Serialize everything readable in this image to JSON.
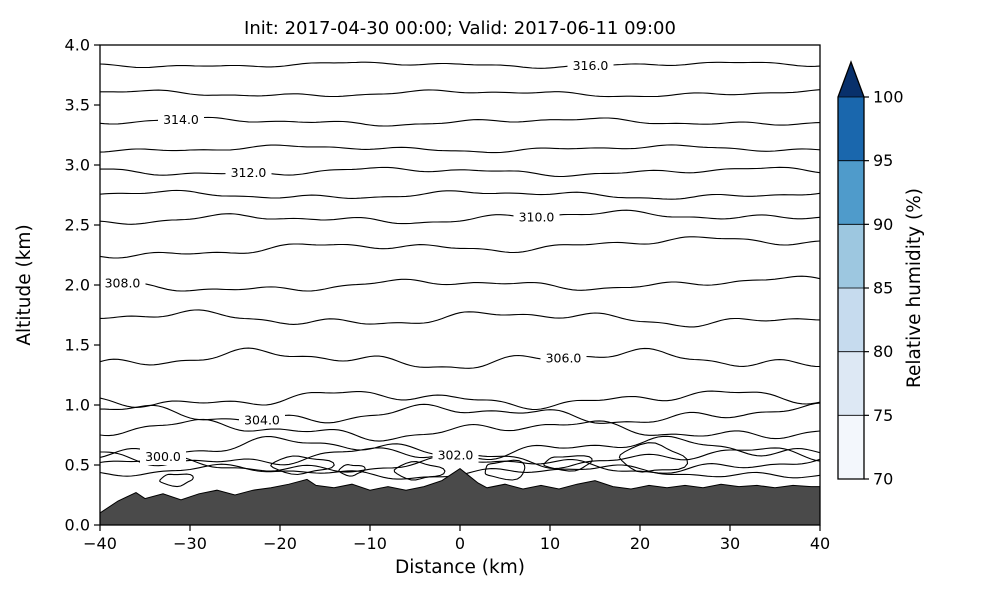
{
  "chart_data": {
    "type": "contour",
    "title": "Init: 2017-04-30 00:00; Valid: 2017-06-11 09:00",
    "xlabel": "Distance (km)",
    "ylabel": "Altitude (km)",
    "xlim": [
      -40,
      40
    ],
    "ylim": [
      0,
      4
    ],
    "xticks": [
      -40,
      -30,
      -20,
      -10,
      0,
      10,
      20,
      30,
      40
    ],
    "xtick_labels": [
      "−40",
      "−30",
      "−20",
      "−10",
      "0",
      "10",
      "20",
      "30",
      "40"
    ],
    "yticks": [
      0,
      0.5,
      1,
      1.5,
      2,
      2.5,
      3,
      3.5,
      4
    ],
    "ytick_labels": [
      "0.0",
      "0.5",
      "1.0",
      "1.5",
      "2.0",
      "2.5",
      "3.0",
      "3.5",
      "4.0"
    ],
    "contour_interval": 1.0,
    "contours": [
      {
        "level": 299,
        "alt": 0.44,
        "amp": 0.035
      },
      {
        "level": 300,
        "alt": 0.5,
        "amp": 0.045,
        "label": "300.0",
        "label_x": -33
      },
      {
        "level": 301,
        "alt": 0.565,
        "amp": 0.05
      },
      {
        "level": 302,
        "alt": 0.64,
        "amp": 0.055,
        "label": "302.0",
        "label_x": -0.5
      },
      {
        "level": 303,
        "alt": 0.79,
        "amp": 0.05
      },
      {
        "level": 304,
        "alt": 0.92,
        "amp": 0.05,
        "label": "304.0",
        "label_x": -22
      },
      {
        "level": 305,
        "alt": 1.05,
        "amp": 0.045
      },
      {
        "level": 306,
        "alt": 1.38,
        "amp": 0.05,
        "label": "306.0",
        "label_x": 11.5
      },
      {
        "level": 307,
        "alt": 1.72,
        "amp": 0.04
      },
      {
        "level": 308,
        "alt": 2.0,
        "amp": 0.03,
        "label": "308.0",
        "label_x": -37.5,
        "tilt": 0.04
      },
      {
        "level": 309,
        "alt": 2.32,
        "amp": 0.03,
        "tilt": 0.1
      },
      {
        "level": 310,
        "alt": 2.56,
        "amp": 0.028,
        "label": "310.0",
        "label_x": 8.5,
        "tilt": 0.06
      },
      {
        "level": 311,
        "alt": 2.75,
        "amp": 0.022
      },
      {
        "level": 312,
        "alt": 2.945,
        "amp": 0.022,
        "label": "312.0",
        "label_x": -23.5
      },
      {
        "level": 313,
        "alt": 3.135,
        "amp": 0.018
      },
      {
        "level": 314,
        "alt": 3.36,
        "amp": 0.02,
        "label": "314.0",
        "label_x": -31
      },
      {
        "level": 315,
        "alt": 3.595,
        "amp": 0.018
      },
      {
        "level": 316,
        "alt": 3.835,
        "amp": 0.015,
        "label": "316.0",
        "label_x": 14.5
      }
    ],
    "closed_contours": [
      {
        "cx": -31.5,
        "cy": 0.38,
        "rx": 1.8,
        "ry": 0.05
      },
      {
        "cx": -17.5,
        "cy": 0.5,
        "rx": 3.0,
        "ry": 0.07
      },
      {
        "cx": -12.0,
        "cy": 0.46,
        "rx": 1.3,
        "ry": 0.045
      },
      {
        "cx": -4.5,
        "cy": 0.45,
        "rx": 2.4,
        "ry": 0.07
      },
      {
        "cx": 5.0,
        "cy": 0.46,
        "rx": 2.6,
        "ry": 0.075
      },
      {
        "cx": 12.0,
        "cy": 0.52,
        "rx": 2.8,
        "ry": 0.06
      },
      {
        "cx": 21.5,
        "cy": 0.55,
        "rx": 3.4,
        "ry": 0.115
      }
    ],
    "terrain_profile": [
      [
        -40,
        0.1
      ],
      [
        -38,
        0.2
      ],
      [
        -36,
        0.27
      ],
      [
        -35,
        0.22
      ],
      [
        -33,
        0.26
      ],
      [
        -31,
        0.21
      ],
      [
        -29,
        0.26
      ],
      [
        -27,
        0.29
      ],
      [
        -25,
        0.25
      ],
      [
        -23,
        0.29
      ],
      [
        -21,
        0.31
      ],
      [
        -19,
        0.34
      ],
      [
        -17,
        0.38
      ],
      [
        -16,
        0.33
      ],
      [
        -14,
        0.31
      ],
      [
        -12,
        0.34
      ],
      [
        -10,
        0.29
      ],
      [
        -8,
        0.32
      ],
      [
        -6,
        0.29
      ],
      [
        -4,
        0.32
      ],
      [
        -2,
        0.37
      ],
      [
        -1,
        0.42
      ],
      [
        0,
        0.47
      ],
      [
        1,
        0.41
      ],
      [
        2,
        0.35
      ],
      [
        3,
        0.31
      ],
      [
        5,
        0.34
      ],
      [
        7,
        0.3
      ],
      [
        9,
        0.33
      ],
      [
        11,
        0.3
      ],
      [
        13,
        0.34
      ],
      [
        15,
        0.37
      ],
      [
        17,
        0.32
      ],
      [
        19,
        0.3
      ],
      [
        21,
        0.33
      ],
      [
        23,
        0.31
      ],
      [
        25,
        0.33
      ],
      [
        27,
        0.31
      ],
      [
        29,
        0.34
      ],
      [
        31,
        0.32
      ],
      [
        33,
        0.33
      ],
      [
        35,
        0.31
      ],
      [
        37,
        0.33
      ],
      [
        39,
        0.32
      ],
      [
        40,
        0.32
      ]
    ],
    "terrain_color": "#4a4a4a",
    "filled_regions": [],
    "colorbar": {
      "label": "Relative humidity (%)",
      "ticks": [
        70,
        75,
        80,
        85,
        90,
        95,
        100
      ],
      "tick_labels": [
        "70",
        "75",
        "80",
        "85",
        "90",
        "95",
        "100"
      ],
      "segment_colors": [
        "#f3f7fc",
        "#dde8f4",
        "#c6dbee",
        "#9dc7e0",
        "#4f9bcb",
        "#1a67ad"
      ],
      "over_color": "#08306b",
      "extend": "max"
    }
  }
}
